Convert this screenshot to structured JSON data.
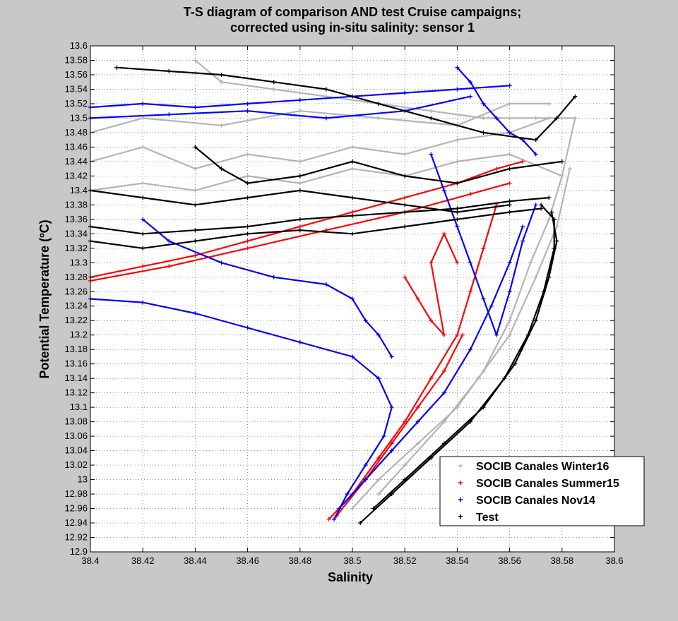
{
  "chart_data": {
    "type": "scatter",
    "title_lines": [
      "T-S diagram of comparison AND test Cruise campaigns;",
      "corrected using in-situ salinity: sensor 1"
    ],
    "xlabel": "Salinity",
    "ylabel": "Potential Temperature (ºC)",
    "xlim": [
      38.4,
      38.6
    ],
    "ylim": [
      12.9,
      13.6
    ],
    "xticks": [
      "38.4",
      "38.42",
      "38.44",
      "38.46",
      "38.48",
      "38.5",
      "38.52",
      "38.54",
      "38.56",
      "38.58",
      "38.6"
    ],
    "yticks": [
      "12.9",
      "12.92",
      "12.94",
      "12.96",
      "12.98",
      "13",
      "13.02",
      "13.04",
      "13.06",
      "13.08",
      "13.1",
      "13.12",
      "13.14",
      "13.16",
      "13.18",
      "13.2",
      "13.22",
      "13.24",
      "13.26",
      "13.28",
      "13.3",
      "13.32",
      "13.34",
      "13.36",
      "13.38",
      "13.4",
      "13.42",
      "13.44",
      "13.46",
      "13.48",
      "13.5",
      "13.52",
      "13.54",
      "13.56",
      "13.58",
      "13.6"
    ],
    "grid": true,
    "legend_position": "bottom-right",
    "marker": "+",
    "series": [
      {
        "name": "SOCIB Canales Winter16",
        "color": "#b4b4b4",
        "traces": [
          [
            [
              38.5,
              12.96
            ],
            [
              38.51,
              13.0
            ],
            [
              38.525,
              13.05
            ],
            [
              38.54,
              13.1
            ],
            [
              38.55,
              13.15
            ],
            [
              38.56,
              13.22
            ],
            [
              38.568,
              13.3
            ],
            [
              38.575,
              13.36
            ],
            [
              38.58,
              13.42
            ],
            [
              38.585,
              13.5
            ]
          ],
          [
            [
              38.51,
              12.98
            ],
            [
              38.52,
              13.02
            ],
            [
              38.535,
              13.08
            ],
            [
              38.548,
              13.14
            ],
            [
              38.56,
              13.2
            ],
            [
              38.57,
              13.28
            ],
            [
              38.578,
              13.35
            ],
            [
              38.583,
              13.43
            ]
          ],
          [
            [
              38.4,
              13.44
            ],
            [
              38.42,
              13.46
            ],
            [
              38.44,
              13.43
            ],
            [
              38.46,
              13.45
            ],
            [
              38.48,
              13.44
            ],
            [
              38.5,
              13.46
            ],
            [
              38.52,
              13.45
            ],
            [
              38.54,
              13.47
            ],
            [
              38.56,
              13.48
            ],
            [
              38.575,
              13.5
            ]
          ],
          [
            [
              38.4,
              13.4
            ],
            [
              38.42,
              13.41
            ],
            [
              38.44,
              13.4
            ],
            [
              38.46,
              13.42
            ],
            [
              38.48,
              13.41
            ],
            [
              38.5,
              13.43
            ],
            [
              38.52,
              13.42
            ],
            [
              38.54,
              13.44
            ],
            [
              38.56,
              13.45
            ],
            [
              38.58,
              13.42
            ]
          ],
          [
            [
              38.44,
              13.58
            ],
            [
              38.45,
              13.55
            ],
            [
              38.47,
              13.54
            ],
            [
              38.49,
              13.53
            ],
            [
              38.51,
              13.52
            ],
            [
              38.53,
              13.51
            ],
            [
              38.55,
              13.5
            ],
            [
              38.57,
              13.5
            ],
            [
              38.585,
              13.5
            ]
          ],
          [
            [
              38.4,
              13.48
            ],
            [
              38.42,
              13.5
            ],
            [
              38.45,
              13.49
            ],
            [
              38.48,
              13.51
            ],
            [
              38.51,
              13.5
            ],
            [
              38.54,
              13.49
            ],
            [
              38.56,
              13.52
            ],
            [
              38.575,
              13.52
            ]
          ]
        ]
      },
      {
        "name": "SOCIB Canales Summer15",
        "color": "#ff0000",
        "traces": [
          [
            [
              38.4,
              13.28
            ],
            [
              38.42,
              13.295
            ],
            [
              38.44,
              13.31
            ],
            [
              38.46,
              13.33
            ],
            [
              38.48,
              13.35
            ],
            [
              38.5,
              13.37
            ],
            [
              38.52,
              13.39
            ],
            [
              38.54,
              13.41
            ],
            [
              38.555,
              13.43
            ],
            [
              38.565,
              13.44
            ]
          ],
          [
            [
              38.4,
              13.275
            ],
            [
              38.43,
              13.295
            ],
            [
              38.46,
              13.32
            ],
            [
              38.49,
              13.345
            ],
            [
              38.52,
              13.37
            ],
            [
              38.545,
              13.395
            ],
            [
              38.56,
              13.41
            ]
          ],
          [
            [
              38.491,
              12.945
            ],
            [
              38.5,
              12.98
            ],
            [
              38.51,
              13.03
            ],
            [
              38.52,
              13.08
            ],
            [
              38.53,
              13.14
            ],
            [
              38.54,
              13.2
            ],
            [
              38.545,
              13.26
            ],
            [
              38.55,
              13.32
            ],
            [
              38.555,
              13.38
            ]
          ],
          [
            [
              38.494,
              12.95
            ],
            [
              38.505,
              13.0
            ],
            [
              38.515,
              13.05
            ],
            [
              38.525,
              13.1
            ],
            [
              38.535,
              13.15
            ],
            [
              38.542,
              13.2
            ]
          ],
          [
            [
              38.52,
              13.28
            ],
            [
              38.525,
              13.25
            ],
            [
              38.53,
              13.22
            ],
            [
              38.535,
              13.2
            ],
            [
              38.53,
              13.3
            ],
            [
              38.535,
              13.34
            ],
            [
              38.54,
              13.3
            ]
          ]
        ]
      },
      {
        "name": "SOCIB Canales Nov14",
        "color": "#0000ff",
        "traces": [
          [
            [
              38.4,
              13.25
            ],
            [
              38.42,
              13.245
            ],
            [
              38.44,
              13.23
            ],
            [
              38.46,
              13.21
            ],
            [
              38.48,
              13.19
            ],
            [
              38.5,
              13.17
            ],
            [
              38.51,
              13.14
            ],
            [
              38.515,
              13.1
            ],
            [
              38.512,
              13.06
            ],
            [
              38.505,
              13.02
            ],
            [
              38.498,
              12.98
            ],
            [
              38.493,
              12.945
            ]
          ],
          [
            [
              38.4,
              13.515
            ],
            [
              38.42,
              13.52
            ],
            [
              38.44,
              13.515
            ],
            [
              38.46,
              13.52
            ],
            [
              38.48,
              13.525
            ],
            [
              38.5,
              13.53
            ],
            [
              38.52,
              13.535
            ],
            [
              38.54,
              13.54
            ],
            [
              38.56,
              13.545
            ]
          ],
          [
            [
              38.4,
              13.5
            ],
            [
              38.43,
              13.505
            ],
            [
              38.46,
              13.51
            ],
            [
              38.49,
              13.5
            ],
            [
              38.52,
              13.51
            ],
            [
              38.545,
              13.53
            ]
          ],
          [
            [
              38.495,
              12.96
            ],
            [
              38.505,
              13.0
            ],
            [
              38.515,
              13.04
            ],
            [
              38.525,
              13.08
            ],
            [
              38.535,
              13.12
            ],
            [
              38.545,
              13.18
            ],
            [
              38.553,
              13.24
            ],
            [
              38.56,
              13.3
            ],
            [
              38.565,
              13.35
            ]
          ],
          [
            [
              38.42,
              13.36
            ],
            [
              38.43,
              13.33
            ],
            [
              38.45,
              13.3
            ],
            [
              38.47,
              13.28
            ],
            [
              38.49,
              13.27
            ],
            [
              38.5,
              13.25
            ],
            [
              38.505,
              13.22
            ],
            [
              38.51,
              13.2
            ],
            [
              38.515,
              13.17
            ]
          ],
          [
            [
              38.53,
              13.45
            ],
            [
              38.535,
              13.4
            ],
            [
              38.54,
              13.35
            ],
            [
              38.545,
              13.3
            ],
            [
              38.55,
              13.25
            ],
            [
              38.555,
              13.2
            ],
            [
              38.56,
              13.26
            ],
            [
              38.565,
              13.33
            ],
            [
              38.57,
              13.38
            ]
          ],
          [
            [
              38.54,
              13.57
            ],
            [
              38.545,
              13.55
            ],
            [
              38.55,
              13.52
            ],
            [
              38.555,
              13.5
            ],
            [
              38.56,
              13.48
            ],
            [
              38.565,
              13.47
            ],
            [
              38.57,
              13.45
            ]
          ]
        ]
      },
      {
        "name": "Test",
        "color": "#000000",
        "traces": [
          [
            [
              38.503,
              12.94
            ],
            [
              38.515,
              12.98
            ],
            [
              38.53,
              13.03
            ],
            [
              38.545,
              13.08
            ],
            [
              38.558,
              13.14
            ],
            [
              38.567,
              13.2
            ],
            [
              38.573,
              13.26
            ],
            [
              38.577,
              13.32
            ],
            [
              38.577,
              13.36
            ],
            [
              38.572,
              13.38
            ]
          ],
          [
            [
              38.508,
              12.96
            ],
            [
              38.52,
              13.0
            ],
            [
              38.535,
              13.05
            ],
            [
              38.55,
              13.1
            ],
            [
              38.562,
              13.16
            ],
            [
              38.57,
              13.22
            ],
            [
              38.575,
              13.28
            ],
            [
              38.578,
              13.33
            ],
            [
              38.576,
              13.37
            ]
          ],
          [
            [
              38.4,
              13.35
            ],
            [
              38.42,
              13.34
            ],
            [
              38.44,
              13.345
            ],
            [
              38.46,
              13.35
            ],
            [
              38.48,
              13.36
            ],
            [
              38.5,
              13.365
            ],
            [
              38.52,
              13.37
            ],
            [
              38.54,
              13.375
            ],
            [
              38.56,
              13.385
            ],
            [
              38.575,
              13.39
            ]
          ],
          [
            [
              38.4,
              13.33
            ],
            [
              38.42,
              13.32
            ],
            [
              38.44,
              13.33
            ],
            [
              38.46,
              13.34
            ],
            [
              38.48,
              13.345
            ],
            [
              38.5,
              13.34
            ],
            [
              38.52,
              13.35
            ],
            [
              38.54,
              13.36
            ],
            [
              38.56,
              13.37
            ],
            [
              38.572,
              13.375
            ]
          ],
          [
            [
              38.41,
              13.57
            ],
            [
              38.43,
              13.565
            ],
            [
              38.45,
              13.56
            ],
            [
              38.47,
              13.55
            ],
            [
              38.49,
              13.54
            ],
            [
              38.51,
              13.52
            ],
            [
              38.53,
              13.5
            ],
            [
              38.55,
              13.48
            ],
            [
              38.57,
              13.47
            ],
            [
              38.578,
              13.5
            ],
            [
              38.585,
              13.53
            ]
          ],
          [
            [
              38.4,
              13.4
            ],
            [
              38.42,
              13.39
            ],
            [
              38.44,
              13.38
            ],
            [
              38.46,
              13.39
            ],
            [
              38.48,
              13.4
            ],
            [
              38.5,
              13.39
            ],
            [
              38.52,
              13.38
            ],
            [
              38.54,
              13.37
            ],
            [
              38.56,
              13.38
            ]
          ],
          [
            [
              38.44,
              13.46
            ],
            [
              38.45,
              13.43
            ],
            [
              38.46,
              13.41
            ],
            [
              38.48,
              13.42
            ],
            [
              38.5,
              13.44
            ],
            [
              38.52,
              13.42
            ],
            [
              38.54,
              13.41
            ],
            [
              38.56,
              13.43
            ],
            [
              38.58,
              13.44
            ]
          ]
        ]
      }
    ]
  }
}
